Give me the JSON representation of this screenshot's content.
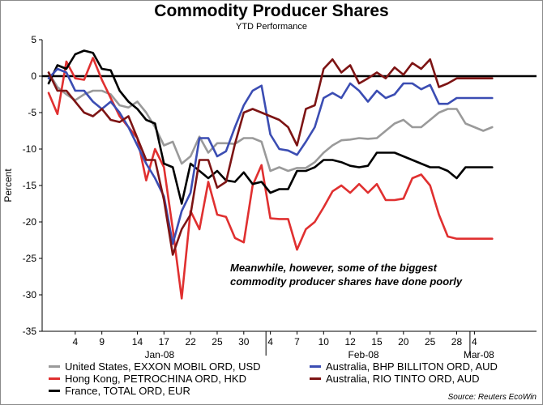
{
  "header": {
    "title": "Commodity Producer Shares",
    "subtitle": "YTD Performance"
  },
  "source": "Source: Reuters EcoWin",
  "annotation": {
    "line1": "Meanwhile, however, some of the biggest",
    "line2": "commodity producer shares have done poorly"
  },
  "colors": {
    "exxon": "#9a9a9a",
    "bhp": "#3b4db3",
    "petrochina": "#e03030",
    "riotinto": "#7d1414",
    "total": "#000000"
  },
  "chart_data": {
    "type": "line",
    "title": "Commodity Producer Shares",
    "subtitle": "YTD Performance",
    "ylabel": "Percent",
    "ylim": [
      -35,
      5
    ],
    "yticks": [
      5,
      0,
      -5,
      -10,
      -15,
      -20,
      -25,
      -30,
      -35
    ],
    "xlim": [
      0,
      55
    ],
    "xticks": [
      {
        "x": 3,
        "label": "4"
      },
      {
        "x": 6,
        "label": "9"
      },
      {
        "x": 10,
        "label": "14"
      },
      {
        "x": 13,
        "label": "17"
      },
      {
        "x": 16,
        "label": "22"
      },
      {
        "x": 19,
        "label": "25"
      },
      {
        "x": 22,
        "label": "30"
      },
      {
        "x": 25,
        "label": "4"
      },
      {
        "x": 28,
        "label": "7"
      },
      {
        "x": 31,
        "label": "10"
      },
      {
        "x": 34,
        "label": "12"
      },
      {
        "x": 37,
        "label": "15"
      },
      {
        "x": 40,
        "label": "20"
      },
      {
        "x": 43,
        "label": "25"
      },
      {
        "x": 46,
        "label": "28"
      },
      {
        "x": 48,
        "label": "4"
      }
    ],
    "month_labels": [
      {
        "x": 12.5,
        "label": "Jan-08"
      },
      {
        "x": 35.5,
        "label": "Feb-08"
      },
      {
        "x": 48.5,
        "label": "Mar-08"
      }
    ],
    "month_separators": [
      24.5,
      47.5
    ],
    "zero_line": true,
    "x": [
      0,
      1,
      2,
      3,
      4,
      5,
      6,
      7,
      8,
      9,
      10,
      11,
      12,
      13,
      14,
      15,
      16,
      17,
      18,
      19,
      20,
      21,
      22,
      23,
      24,
      25,
      26,
      27,
      28,
      29,
      30,
      31,
      32,
      33,
      34,
      35,
      36,
      37,
      38,
      39,
      40,
      41,
      42,
      43,
      44,
      45,
      46,
      47,
      48,
      49,
      50
    ],
    "series": [
      {
        "name": "United States, EXXON MOBIL ORD, USD",
        "color_key": "exxon",
        "values": [
          0.5,
          -1.5,
          -2.5,
          -3.3,
          -2.5,
          -2,
          -2,
          -2.5,
          -4,
          -4.3,
          -3.5,
          -5,
          -7,
          -9.5,
          -9,
          -12,
          -11,
          -8.3,
          -10.5,
          -9.2,
          -9.2,
          -9.3,
          -8.5,
          -8.5,
          -9,
          -13,
          -12.5,
          -13,
          -12.6,
          -12.6,
          -11.8,
          -10.5,
          -9.5,
          -8.8,
          -8.7,
          -8.5,
          -8.6,
          -8.5,
          -7.5,
          -6.5,
          -6,
          -7,
          -7,
          -6,
          -5,
          -4.5,
          -4.5,
          -6.5,
          -7,
          -7.5,
          -7
        ]
      },
      {
        "name": "Hong Kong, PETROCHINA ORD, HKD",
        "color_key": "petrochina",
        "values": [
          -2.3,
          -5.2,
          2,
          -0.3,
          -0.5,
          2.5,
          -0.5,
          -3,
          -5.5,
          -7,
          -8.5,
          -14.3,
          -10,
          -12.5,
          -21,
          -30.5,
          -18.5,
          -21,
          -14.5,
          -19,
          -19.3,
          -22.2,
          -22.8,
          -15,
          -12.2,
          -19.5,
          -19.6,
          -19.6,
          -23.8,
          -21,
          -20,
          -18,
          -15.8,
          -15,
          -16,
          -14.8,
          -16,
          -14.8,
          -17,
          -17,
          -16.8,
          -14,
          -13.5,
          -15,
          -19,
          -22,
          -22.3,
          -22.3,
          -22.3,
          -22.3,
          -22.3
        ]
      },
      {
        "name": "France, TOTAL ORD, EUR",
        "color_key": "total",
        "values": [
          -1,
          1.5,
          1,
          3,
          3.5,
          3.2,
          1,
          0.8,
          -2,
          -3.5,
          -4.5,
          -6,
          -6.5,
          -12,
          -12.5,
          -17.5,
          -12,
          -13,
          -14,
          -13,
          -14.3,
          -14.5,
          -13.2,
          -14.8,
          -14.5,
          -16,
          -15.5,
          -15.5,
          -13,
          -13,
          -12.5,
          -11.5,
          -11.5,
          -11.8,
          -12.3,
          -12.5,
          -12.3,
          -10.5,
          -10.5,
          -10.5,
          -11,
          -11.5,
          -12,
          -12.5,
          -12.5,
          -13,
          -14,
          -12.5,
          -12.5,
          -12.5,
          -12.5
        ]
      },
      {
        "name": "Australia, BHP BILLITON ORD, AUD",
        "color_key": "bhp",
        "values": [
          -0.3,
          1,
          0.5,
          -2,
          -2,
          -3.5,
          -4.5,
          -3.5,
          -5,
          -7,
          -9.5,
          -12,
          -14,
          -16.5,
          -23,
          -18.5,
          -16,
          -8.5,
          -8.5,
          -11,
          -10.3,
          -7,
          -4,
          -2,
          -1.3,
          -8,
          -10,
          -10.2,
          -10.8,
          -9,
          -7,
          -3,
          -2.3,
          -3,
          -1,
          -2,
          -3.5,
          -2,
          -3,
          -2.5,
          -1,
          -1,
          -1.8,
          -1.2,
          -3.8,
          -3.8,
          -3,
          -3,
          -3,
          -3,
          -3
        ]
      },
      {
        "name": "Australia, RIO TINTO ORD, AUD",
        "color_key": "riotinto",
        "values": [
          0.5,
          -2,
          -2,
          -3.5,
          -5,
          -5.5,
          -4.5,
          -6,
          -6.3,
          -5.5,
          -8.5,
          -11.5,
          -11.5,
          -17,
          -24.5,
          -21,
          -19,
          -11.5,
          -11.5,
          -15.3,
          -14.5,
          -9.3,
          -5,
          -4.5,
          -5,
          -5.5,
          -6,
          -7,
          -9.5,
          -4.5,
          -4,
          1,
          2.3,
          0.5,
          1.5,
          -1,
          -0.3,
          0.5,
          -0.3,
          1.2,
          0.2,
          1.8,
          1,
          2.3,
          -1.5,
          -1,
          -0.3,
          -0.3,
          -0.3,
          -0.3,
          -0.3
        ]
      }
    ],
    "legend_placement": "bottom"
  }
}
